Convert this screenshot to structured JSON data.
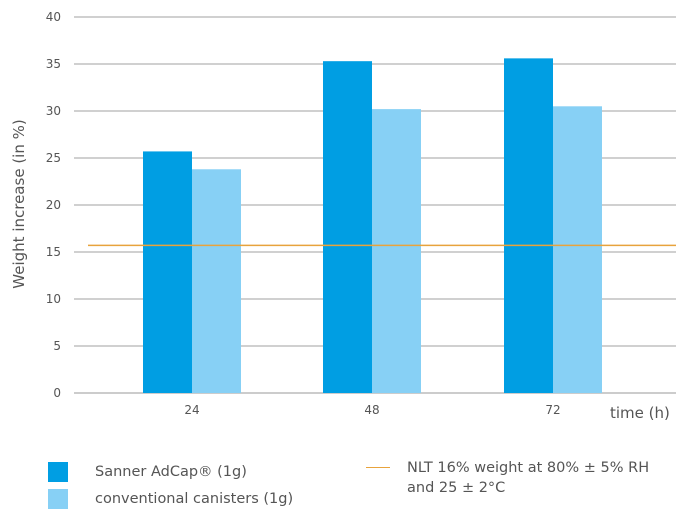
{
  "chart_data": {
    "type": "bar",
    "categories": [
      "24",
      "48",
      "72"
    ],
    "series": [
      {
        "name": "Sanner AdCap® (1g)",
        "values": [
          25.7,
          35.3,
          35.6
        ],
        "color": "#009ee3"
      },
      {
        "name": "conventional canisters (1g)",
        "values": [
          23.8,
          30.2,
          30.5
        ],
        "color": "#87d0f5"
      }
    ],
    "reference_line": {
      "value": 15.7,
      "label": "NLT 16% weight at 80% ± 5% RH and 25 ± 2°C",
      "color": "#e8a33c"
    },
    "yticks": [
      "0",
      "5",
      "10",
      "15",
      "20",
      "25",
      "30",
      "35",
      "40"
    ],
    "ylim": [
      0,
      40
    ],
    "ylabel": "Weight increase (in %)",
    "xlabel": "time (h)",
    "grid": true,
    "legend_placement": "bottom"
  }
}
